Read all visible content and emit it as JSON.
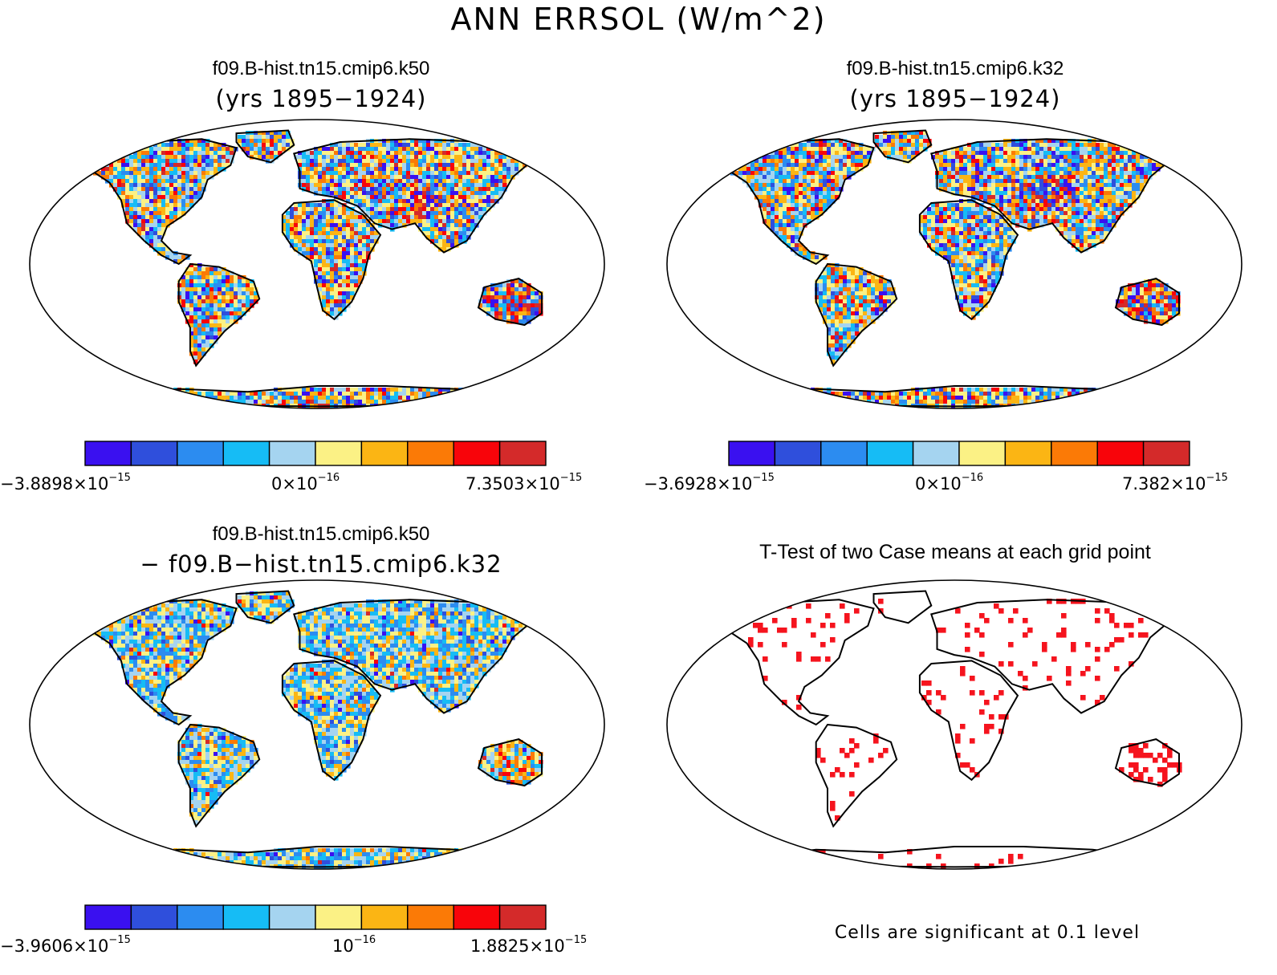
{
  "title": "ANN ERRSOL (W/m^2)",
  "colors": [
    "#3a10f0",
    "#2f4fdc",
    "#2c8cf0",
    "#16bcf5",
    "#a5d4f0",
    "#fbf185",
    "#fbb514",
    "#fb7a06",
    "#f8040a",
    "#d42a2a"
  ],
  "significance_color": "#f5141e",
  "chart_data": [
    {
      "type": "heatmap",
      "map": "world-robinson",
      "title": "f09.B-hist.tn15.cmip6.k50",
      "subtitle": "(yrs 1895−1924)",
      "colorbar": {
        "min_label": "−3.8898×10",
        "min_exp": "−15",
        "mid_label": "0×10",
        "mid_exp": "−16",
        "max_label": "7.3503×10",
        "max_exp": "−15"
      }
    },
    {
      "type": "heatmap",
      "map": "world-robinson",
      "title": "f09.B-hist.tn15.cmip6.k32",
      "subtitle": "(yrs 1895−1924)",
      "colorbar": {
        "min_label": "−3.6928×10",
        "min_exp": "−15",
        "mid_label": "0×10",
        "mid_exp": "−16",
        "max_label": "7.382×10",
        "max_exp": "−15"
      }
    },
    {
      "type": "heatmap",
      "map": "world-robinson",
      "title": "f09.B-hist.tn15.cmip6.k50",
      "subtitle": "− f09.B−hist.tn15.cmip6.k32",
      "colorbar": {
        "min_label": "−3.9606×10",
        "min_exp": "−15",
        "mid_label": "10",
        "mid_exp": "−16",
        "max_label": "1.8825×10",
        "max_exp": "−15"
      }
    },
    {
      "type": "heatmap",
      "map": "world-robinson",
      "title": "T-Test of two Case means at each grid point",
      "note": "Cells are significant at 0.1 level"
    }
  ]
}
